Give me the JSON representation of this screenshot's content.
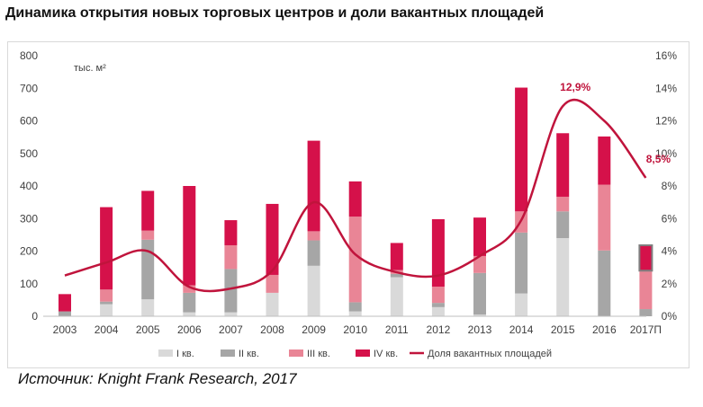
{
  "title": "Динамика открытия новых торговых центров и доли вакантных площадей",
  "source": "Источник: Knight Frank Research, 2017",
  "colors": {
    "q1": "#d9d9d9",
    "q2": "#a6a6a6",
    "q3": "#e98596",
    "q4": "#d5114a",
    "vacancy_line": "#c0143c",
    "highlight_border": "#7f7f7f"
  },
  "chart_data": {
    "type": "bar",
    "stacked": true,
    "categories": [
      "2003",
      "2004",
      "2005",
      "2006",
      "2007",
      "2008",
      "2009",
      "2010",
      "2011",
      "2012",
      "2013",
      "2014",
      "2015",
      "2016",
      "2017П"
    ],
    "unit_label": "тыс. м²",
    "ylim": [
      0,
      800
    ],
    "yticks": [
      "0",
      "100",
      "200",
      "300",
      "400",
      "500",
      "600",
      "700",
      "800"
    ],
    "y2lim": [
      0,
      16
    ],
    "y2ticks": [
      "0%",
      "2%",
      "4%",
      "6%",
      "8%",
      "10%",
      "12%",
      "14%",
      "16%"
    ],
    "series": [
      {
        "name": "I кв.",
        "values": [
          0,
          37,
          52,
          12,
          12,
          72,
          155,
          15,
          120,
          28,
          5,
          70,
          240,
          0,
          0
        ]
      },
      {
        "name": "II кв.",
        "values": [
          15,
          8,
          183,
          60,
          133,
          0,
          78,
          28,
          10,
          13,
          128,
          187,
          82,
          202,
          22
        ]
      },
      {
        "name": "III кв.",
        "values": [
          0,
          37,
          28,
          23,
          73,
          55,
          28,
          263,
          12,
          50,
          52,
          65,
          45,
          202,
          118
        ]
      },
      {
        "name": "IV кв.",
        "values": [
          53,
          253,
          122,
          305,
          77,
          218,
          278,
          108,
          83,
          207,
          118,
          380,
          195,
          148,
          78
        ]
      },
      {
        "name": "Доля вакантных площадей",
        "type": "line",
        "axis": "right",
        "values": [
          2.5,
          3.3,
          4.0,
          1.8,
          1.7,
          2.8,
          7.0,
          3.8,
          2.7,
          2.5,
          3.7,
          5.9,
          12.9,
          12.0,
          8.5
        ]
      }
    ],
    "line_peak_x": [
      2015.35,
      13.6
    ],
    "data_labels": [
      {
        "category": "2015",
        "text": "12,9%"
      },
      {
        "category": "2017П",
        "text": "8,5%"
      }
    ],
    "highlighted_segment": {
      "category": "2017П",
      "series": "IV кв."
    },
    "grid": false,
    "legend_position": "bottom"
  }
}
